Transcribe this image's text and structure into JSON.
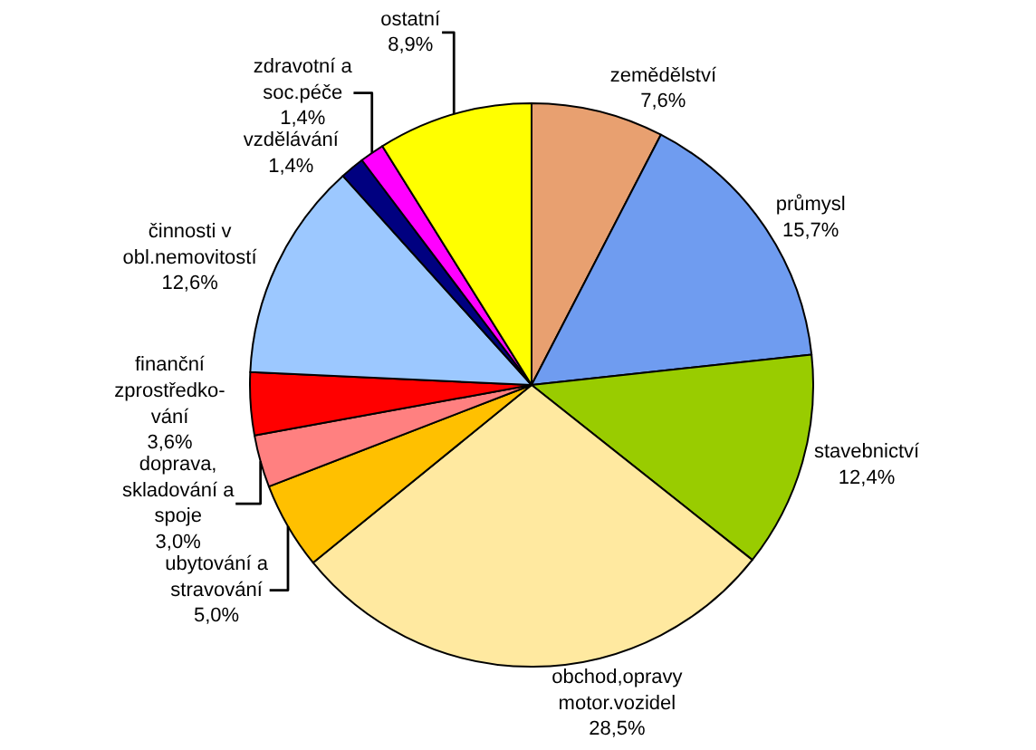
{
  "chart_data": {
    "type": "pie",
    "categories": [
      "zemědělství",
      "průmysl",
      "stavebnictví",
      "obchod,opravy\nmotor.vozidel",
      "ubytování a\nstravování",
      "doprava,\nskladování a\nspoje",
      "finanční\nzprostředko-\nvání",
      "činnosti v\nobl.nemovitostí",
      "vzdělávání",
      "zdravotní a\nsoc.péče",
      "ostatní"
    ],
    "values": [
      7.6,
      15.7,
      12.4,
      28.5,
      5.0,
      3.0,
      3.6,
      12.6,
      1.4,
      1.4,
      8.9
    ],
    "value_labels": [
      "7,6%",
      "15,7%",
      "12,4%",
      "28,5%",
      "5,0%",
      "3,0%",
      "3,6%",
      "12,6%",
      "1,4%",
      "1,4%",
      "8,9%"
    ],
    "colors": [
      "#e8a070",
      "#6f9cf0",
      "#99cc00",
      "#ffe9a0",
      "#ffc000",
      "#ff8080",
      "#ff0000",
      "#9cc8ff",
      "#000080",
      "#ff00ff",
      "#ffff00"
    ],
    "legend": false
  }
}
